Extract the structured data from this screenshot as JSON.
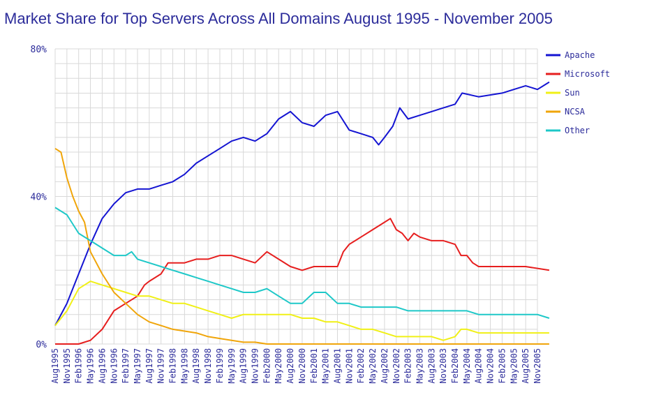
{
  "title": "Market Share for Top Servers Across All Domains August 1995 - November 2005",
  "chart_data": {
    "type": "line",
    "title": "Market Share for Top Servers Across All Domains August 1995 - November 2005",
    "xlabel": "",
    "ylabel": "",
    "ylim": [
      0,
      80
    ],
    "y_ticks": [
      "0%",
      "40%",
      "80%"
    ],
    "x_ticks": [
      "Aug1995",
      "Nov1995",
      "Feb1996",
      "May1996",
      "Aug1996",
      "Nov1996",
      "Feb1997",
      "May1997",
      "Aug1997",
      "Nov1997",
      "Feb1998",
      "May1998",
      "Aug1998",
      "Nov1998",
      "Feb1999",
      "May1999",
      "Aug1999",
      "Nov1999",
      "Feb2000",
      "May2000",
      "Aug2000",
      "Nov2000",
      "Feb2001",
      "May2001",
      "Aug2001",
      "Nov2001",
      "Feb2002",
      "May2002",
      "Aug2002",
      "Nov2002",
      "Feb2003",
      "May2003",
      "Aug2003",
      "Nov2003",
      "Feb2004",
      "May2004",
      "Aug2004",
      "Nov2004",
      "Feb2005",
      "May2005",
      "Aug2005",
      "Nov2005"
    ],
    "grid": true,
    "legend_position": "right",
    "series": [
      {
        "name": "Apache",
        "color": "#1414d2",
        "points": [
          [
            0,
            5
          ],
          [
            1,
            11
          ],
          [
            2,
            19
          ],
          [
            3,
            27
          ],
          [
            4,
            34
          ],
          [
            5,
            38
          ],
          [
            6,
            41
          ],
          [
            7,
            42
          ],
          [
            8,
            42
          ],
          [
            9,
            43
          ],
          [
            10,
            44
          ],
          [
            11,
            46
          ],
          [
            12,
            49
          ],
          [
            13,
            51
          ],
          [
            14,
            53
          ],
          [
            15,
            55
          ],
          [
            16,
            56
          ],
          [
            17,
            55
          ],
          [
            18,
            57
          ],
          [
            19,
            61
          ],
          [
            20,
            63
          ],
          [
            21,
            60
          ],
          [
            22,
            59
          ],
          [
            23,
            62
          ],
          [
            24,
            63
          ],
          [
            25,
            58
          ],
          [
            26,
            57
          ],
          [
            27,
            56
          ],
          [
            27.5,
            54
          ],
          [
            28,
            56
          ],
          [
            28.7,
            59
          ],
          [
            29.3,
            64
          ],
          [
            30,
            61
          ],
          [
            31,
            62
          ],
          [
            32,
            63
          ],
          [
            33,
            64
          ],
          [
            34,
            65
          ],
          [
            34.6,
            68
          ],
          [
            36,
            67
          ],
          [
            38,
            68
          ],
          [
            40,
            70
          ],
          [
            41,
            69
          ],
          [
            42,
            71
          ]
        ]
      },
      {
        "name": "Microsoft",
        "color": "#e61e1e",
        "points": [
          [
            0,
            0
          ],
          [
            2,
            0
          ],
          [
            3,
            1
          ],
          [
            4,
            4
          ],
          [
            5,
            9
          ],
          [
            6,
            11
          ],
          [
            7,
            13
          ],
          [
            7.6,
            16
          ],
          [
            8,
            17
          ],
          [
            9,
            19
          ],
          [
            9.6,
            22
          ],
          [
            11,
            22
          ],
          [
            12,
            23
          ],
          [
            13,
            23
          ],
          [
            14,
            24
          ],
          [
            15,
            24
          ],
          [
            16,
            23
          ],
          [
            17,
            22
          ],
          [
            18,
            25
          ],
          [
            19,
            23
          ],
          [
            20,
            21
          ],
          [
            21,
            20
          ],
          [
            22,
            21
          ],
          [
            23,
            21
          ],
          [
            24,
            21
          ],
          [
            24.5,
            25
          ],
          [
            25,
            27
          ],
          [
            26,
            29
          ],
          [
            27,
            31
          ],
          [
            28,
            33
          ],
          [
            28.5,
            34
          ],
          [
            29,
            31
          ],
          [
            29.5,
            30
          ],
          [
            30,
            28
          ],
          [
            30.5,
            30
          ],
          [
            31,
            29
          ],
          [
            32,
            28
          ],
          [
            33,
            28
          ],
          [
            34,
            27
          ],
          [
            34.5,
            24
          ],
          [
            35,
            24
          ],
          [
            35.5,
            22
          ],
          [
            36,
            21
          ],
          [
            38,
            21
          ],
          [
            40,
            21
          ],
          [
            42,
            20
          ]
        ]
      },
      {
        "name": "Sun",
        "color": "#f0f016",
        "points": [
          [
            0,
            5
          ],
          [
            1,
            9
          ],
          [
            2,
            15
          ],
          [
            3,
            17
          ],
          [
            4,
            16
          ],
          [
            5,
            15
          ],
          [
            6,
            14
          ],
          [
            7,
            13
          ],
          [
            8,
            13
          ],
          [
            9,
            12
          ],
          [
            10,
            11
          ],
          [
            11,
            11
          ],
          [
            12,
            10
          ],
          [
            13,
            9
          ],
          [
            14,
            8
          ],
          [
            15,
            7
          ],
          [
            16,
            8
          ],
          [
            17,
            8
          ],
          [
            18,
            8
          ],
          [
            19,
            8
          ],
          [
            20,
            8
          ],
          [
            21,
            7
          ],
          [
            22,
            7
          ],
          [
            23,
            6
          ],
          [
            24,
            6
          ],
          [
            25,
            5
          ],
          [
            26,
            4
          ],
          [
            27,
            4
          ],
          [
            28,
            3
          ],
          [
            29,
            2
          ],
          [
            30,
            2
          ],
          [
            31,
            2
          ],
          [
            32,
            2
          ],
          [
            33,
            1
          ],
          [
            34,
            2
          ],
          [
            34.5,
            4
          ],
          [
            35,
            4
          ],
          [
            36,
            3
          ],
          [
            38,
            3
          ],
          [
            40,
            3
          ],
          [
            42,
            3
          ]
        ]
      },
      {
        "name": "NCSA",
        "color": "#f0a50a",
        "points": [
          [
            0,
            53
          ],
          [
            0.5,
            52
          ],
          [
            1,
            45
          ],
          [
            1.5,
            40
          ],
          [
            2,
            36
          ],
          [
            2.5,
            33
          ],
          [
            3,
            25
          ],
          [
            4,
            19
          ],
          [
            5,
            14
          ],
          [
            6,
            11
          ],
          [
            7,
            8
          ],
          [
            8,
            6
          ],
          [
            9,
            5
          ],
          [
            10,
            4
          ],
          [
            11,
            3.5
          ],
          [
            12,
            3
          ],
          [
            13,
            2
          ],
          [
            14,
            1.5
          ],
          [
            15,
            1
          ],
          [
            16,
            0.5
          ],
          [
            17,
            0.5
          ],
          [
            18,
            0
          ],
          [
            19,
            0
          ],
          [
            20,
            0
          ],
          [
            42,
            0
          ]
        ]
      },
      {
        "name": "Other",
        "color": "#1ec8c8",
        "points": [
          [
            0,
            37
          ],
          [
            1,
            35
          ],
          [
            2,
            30
          ],
          [
            3,
            28
          ],
          [
            4,
            26
          ],
          [
            5,
            24
          ],
          [
            6,
            24
          ],
          [
            6.5,
            25
          ],
          [
            7,
            23
          ],
          [
            8,
            22
          ],
          [
            9,
            21
          ],
          [
            10,
            20
          ],
          [
            11,
            19
          ],
          [
            12,
            18
          ],
          [
            13,
            17
          ],
          [
            14,
            16
          ],
          [
            15,
            15
          ],
          [
            16,
            14
          ],
          [
            17,
            14
          ],
          [
            18,
            15
          ],
          [
            19,
            13
          ],
          [
            20,
            11
          ],
          [
            21,
            11
          ],
          [
            22,
            14
          ],
          [
            23,
            14
          ],
          [
            24,
            11
          ],
          [
            25,
            11
          ],
          [
            26,
            10
          ],
          [
            27,
            10
          ],
          [
            28,
            10
          ],
          [
            29,
            10
          ],
          [
            30,
            9
          ],
          [
            31,
            9
          ],
          [
            32,
            9
          ],
          [
            33,
            9
          ],
          [
            34,
            9
          ],
          [
            35,
            9
          ],
          [
            36,
            8
          ],
          [
            38,
            8
          ],
          [
            40,
            8
          ],
          [
            41,
            8
          ],
          [
            42,
            7
          ]
        ]
      }
    ]
  }
}
